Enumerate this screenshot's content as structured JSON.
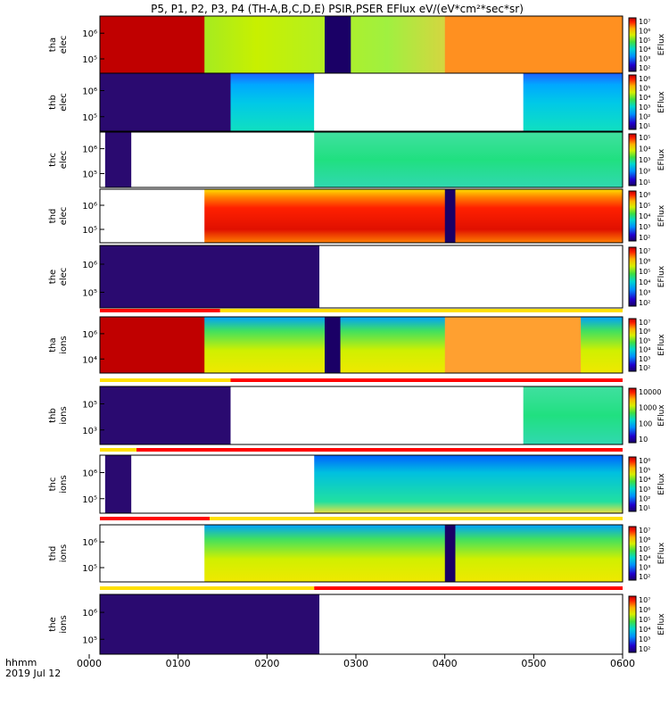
{
  "title": "P5, P1, P2, P3, P4 (TH-A,B,C,D,E) PSIR,PSER EFlux eV/(eV*cm²*sec*sr)",
  "footer": {
    "time_label": "hhmm",
    "date_label": "2019 Jul 12"
  },
  "chart_data": {
    "type": "heatmap",
    "x_axis": {
      "ticks": [
        "0000",
        "0100",
        "0200",
        "0300",
        "0400",
        "0500",
        "0600"
      ],
      "range": [
        "0000",
        "0600"
      ]
    },
    "colorbar_title": "EFlux",
    "panels": [
      {
        "name": "tha_elec",
        "label_lines": [
          "tha",
          "elec"
        ],
        "yticks": [
          "10⁶",
          "10⁵"
        ],
        "cbar_ticks": [
          "10⁷",
          "10⁶",
          "10⁵",
          "10⁴",
          "10³",
          "10²"
        ],
        "cbar_label": "EFlux"
      },
      {
        "name": "thb_elec",
        "label_lines": [
          "thb",
          "elec"
        ],
        "yticks": [
          "10⁶",
          "10⁵"
        ],
        "cbar_ticks": [
          "10⁶",
          "10⁵",
          "10⁴",
          "10³",
          "10²",
          "10¹"
        ],
        "cbar_label": "EFlux"
      },
      {
        "name": "thc_elec",
        "label_lines": [
          "thc",
          "elec"
        ],
        "yticks": [
          "10⁶",
          "10⁵"
        ],
        "cbar_ticks": [
          "10⁵",
          "10⁴",
          "10³",
          "10²",
          "10¹"
        ],
        "cbar_label": "EFlux"
      },
      {
        "name": "thd_elec",
        "label_lines": [
          "thd",
          "elec"
        ],
        "yticks": [
          "10⁶",
          "10⁵"
        ],
        "cbar_ticks": [
          "10⁶",
          "10⁵",
          "10⁴",
          "10³",
          "10²"
        ],
        "cbar_label": "EFlux"
      },
      {
        "name": "the_elec",
        "label_lines": [
          "the",
          "elec"
        ],
        "yticks": [
          "10⁶",
          "10⁵"
        ],
        "cbar_ticks": [
          "10⁷",
          "10⁶",
          "10⁵",
          "10⁴",
          "10³",
          "10²"
        ],
        "cbar_label": "EFlux"
      },
      {
        "name": "tha_ions",
        "label_lines": [
          "tha",
          "ions"
        ],
        "yticks": [
          "10⁶",
          "10⁴"
        ],
        "cbar_ticks": [
          "10⁷",
          "10⁶",
          "10⁵",
          "10⁴",
          "10³",
          "10²"
        ],
        "cbar_label": "EFlux"
      },
      {
        "name": "thb_ions",
        "label_lines": [
          "thb",
          "ions"
        ],
        "yticks": [
          "10⁵",
          "10³"
        ],
        "cbar_ticks": [
          "10000",
          "1000",
          "100",
          "10"
        ],
        "cbar_label": "EFlux"
      },
      {
        "name": "thc_ions",
        "label_lines": [
          "thc",
          "ions"
        ],
        "yticks": [
          "10⁶",
          "10⁵"
        ],
        "cbar_ticks": [
          "10⁶",
          "10⁵",
          "10⁴",
          "10³",
          "10²",
          "10¹"
        ],
        "cbar_label": "EFlux"
      },
      {
        "name": "thd_ions",
        "label_lines": [
          "thd",
          "ions"
        ],
        "yticks": [
          "10⁶",
          "10⁵"
        ],
        "cbar_ticks": [
          "10⁷",
          "10⁶",
          "10⁵",
          "10⁴",
          "10³",
          "10²"
        ],
        "cbar_label": "EFlux"
      },
      {
        "name": "the_ions",
        "label_lines": [
          "the",
          "ions"
        ],
        "yticks": [
          "10⁶",
          "10⁵"
        ],
        "cbar_ticks": [
          "10⁷",
          "10⁶",
          "10⁵",
          "10⁴",
          "10³",
          "10²"
        ],
        "cbar_label": "EFlux"
      }
    ]
  }
}
